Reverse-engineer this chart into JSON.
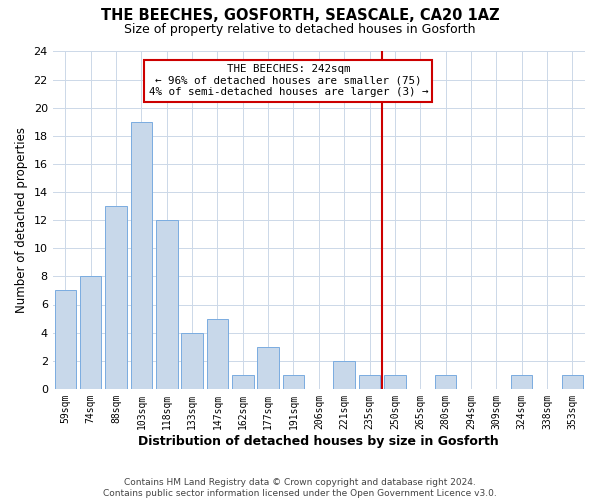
{
  "title": "THE BEECHES, GOSFORTH, SEASCALE, CA20 1AZ",
  "subtitle": "Size of property relative to detached houses in Gosforth",
  "xlabel": "Distribution of detached houses by size in Gosforth",
  "ylabel": "Number of detached properties",
  "bin_labels": [
    "59sqm",
    "74sqm",
    "88sqm",
    "103sqm",
    "118sqm",
    "133sqm",
    "147sqm",
    "162sqm",
    "177sqm",
    "191sqm",
    "206sqm",
    "221sqm",
    "235sqm",
    "250sqm",
    "265sqm",
    "280sqm",
    "294sqm",
    "309sqm",
    "324sqm",
    "338sqm",
    "353sqm"
  ],
  "bar_heights": [
    7,
    8,
    13,
    19,
    12,
    4,
    5,
    1,
    3,
    1,
    0,
    2,
    1,
    1,
    0,
    1,
    0,
    0,
    1,
    0,
    1
  ],
  "bar_color": "#c8d8ea",
  "bar_edge_color": "#7aace0",
  "vline_index": 13,
  "vline_color": "#cc0000",
  "annotation_title": "THE BEECHES: 242sqm",
  "annotation_line1": "← 96% of detached houses are smaller (75)",
  "annotation_line2": "4% of semi-detached houses are larger (3) →",
  "annotation_box_color": "#ffffff",
  "annotation_box_edge": "#cc0000",
  "ylim": [
    0,
    24
  ],
  "yticks": [
    0,
    2,
    4,
    6,
    8,
    10,
    12,
    14,
    16,
    18,
    20,
    22,
    24
  ],
  "footer_line1": "Contains HM Land Registry data © Crown copyright and database right 2024.",
  "footer_line2": "Contains public sector information licensed under the Open Government Licence v3.0.",
  "background_color": "#ffffff",
  "grid_color": "#ccd8e8"
}
